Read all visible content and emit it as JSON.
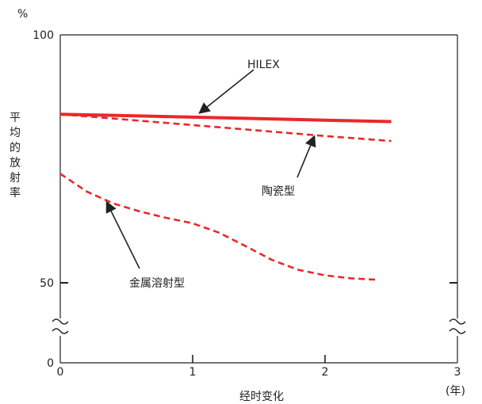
{
  "chart_data": {
    "type": "line",
    "xlabel": "经时变化",
    "x_unit": "(年)",
    "ylabel": "平均的放射率",
    "y_unit": "%",
    "xlim": [
      0,
      3
    ],
    "ylim": [
      0,
      100
    ],
    "y_break": [
      0,
      50
    ],
    "x_ticks": [
      "0",
      "1",
      "2",
      "3"
    ],
    "y_ticks": [
      "0",
      "50",
      "100"
    ],
    "grid": false,
    "legend": "none",
    "series": [
      {
        "name": "HILEX",
        "style": "solid",
        "color": "#e8282b",
        "x": [
          0,
          0.5,
          1,
          1.5,
          2,
          2.5
        ],
        "y": [
          84,
          83.7,
          83.4,
          83.1,
          82.8,
          82.5
        ]
      },
      {
        "name": "陶瓷型",
        "style": "dashed",
        "color": "#e8282b",
        "x": [
          0,
          0.5,
          1,
          1.5,
          2,
          2.5
        ],
        "y": [
          84,
          82.9,
          81.8,
          80.7,
          79.6,
          78.6
        ]
      },
      {
        "name": "金属溶射型",
        "style": "dashed",
        "color": "#e8282b",
        "x": [
          0,
          0.2,
          0.4,
          0.6,
          0.8,
          1.0,
          1.2,
          1.4,
          1.6,
          1.8,
          2.0,
          2.2,
          2.4
        ],
        "y": [
          72,
          68.4,
          66,
          64.4,
          63.1,
          62,
          60.1,
          57.4,
          54.6,
          52.6,
          51.5,
          50.9,
          50.6
        ]
      }
    ],
    "annotations": [
      {
        "text": "HILEX",
        "points_to_x": 1.05,
        "points_to_y": 84.2
      },
      {
        "text": "陶瓷型",
        "points_to_x": 1.92,
        "points_to_y": 79.6
      },
      {
        "text": "金属溶射型",
        "points_to_x": 0.35,
        "points_to_y": 66.3
      }
    ]
  }
}
